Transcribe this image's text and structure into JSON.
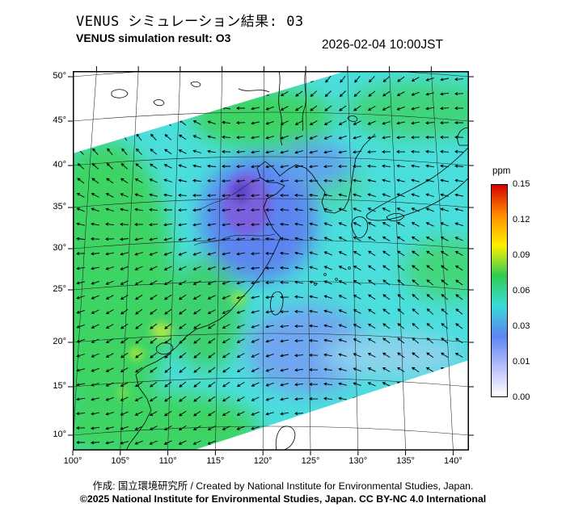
{
  "header": {
    "title_ja": "VENUS シミュレーション結果: 03",
    "title_en": "VENUS simulation result: O3",
    "timestamp": "2026-02-04 10:00JST"
  },
  "chart_data": {
    "type": "heatmap",
    "title": "VENUS simulation result: O3",
    "datetime": "2026-02-04 10:00JST",
    "variable": "O3 concentration",
    "units": "ppm",
    "overlay": "wind vector arrows over East Asia map with coastlines and curved lat/lon graticule",
    "x_ticks": [
      "100°",
      "105°",
      "110°",
      "115°",
      "120°",
      "125°",
      "130°",
      "135°",
      "140°"
    ],
    "y_ticks": [
      "50°",
      "45°",
      "40°",
      "35°",
      "30°",
      "25°",
      "20°",
      "15°",
      "10°"
    ],
    "colorbar": {
      "label": "ppm",
      "tick_labels": [
        "0.15",
        "0.12",
        "0.09",
        "0.06",
        "0.03",
        "0.01",
        "0.00"
      ],
      "tick_values": [
        0.15,
        0.12,
        0.09,
        0.06,
        0.03,
        0.01,
        0.0
      ],
      "gradient_colors": [
        "#d40000",
        "#ff8c00",
        "#fff000",
        "#2dcc50",
        "#3adada",
        "#5c85f0",
        "#b6bdfa",
        "#ffffff"
      ]
    },
    "field_regions": [
      {
        "area": "most of domain (East Asia / western Pacific)",
        "o3_ppm": "0.03-0.06",
        "color": "cyan"
      },
      {
        "area": "inland western China, NE China, scattered patches",
        "o3_ppm": "~0.06",
        "color": "green"
      },
      {
        "area": "eastern China and Yellow Sea",
        "o3_ppm": "0.01-0.03",
        "color": "blue"
      },
      {
        "area": "small cores near 120E 35N",
        "o3_ppm": "~0.01",
        "color": "purple-blue"
      },
      {
        "area": "outside rotated model domain (top-left, bottom-right corners)",
        "o3_ppm": "no data",
        "color": "white"
      }
    ]
  },
  "footer": {
    "credit": "作成: 国立環境研究所 / Created by National Institute for Environmental Studies, Japan.",
    "copyright": "©2025 National Institute for Environmental Studies, Japan. CC BY-NC 4.0 International"
  }
}
